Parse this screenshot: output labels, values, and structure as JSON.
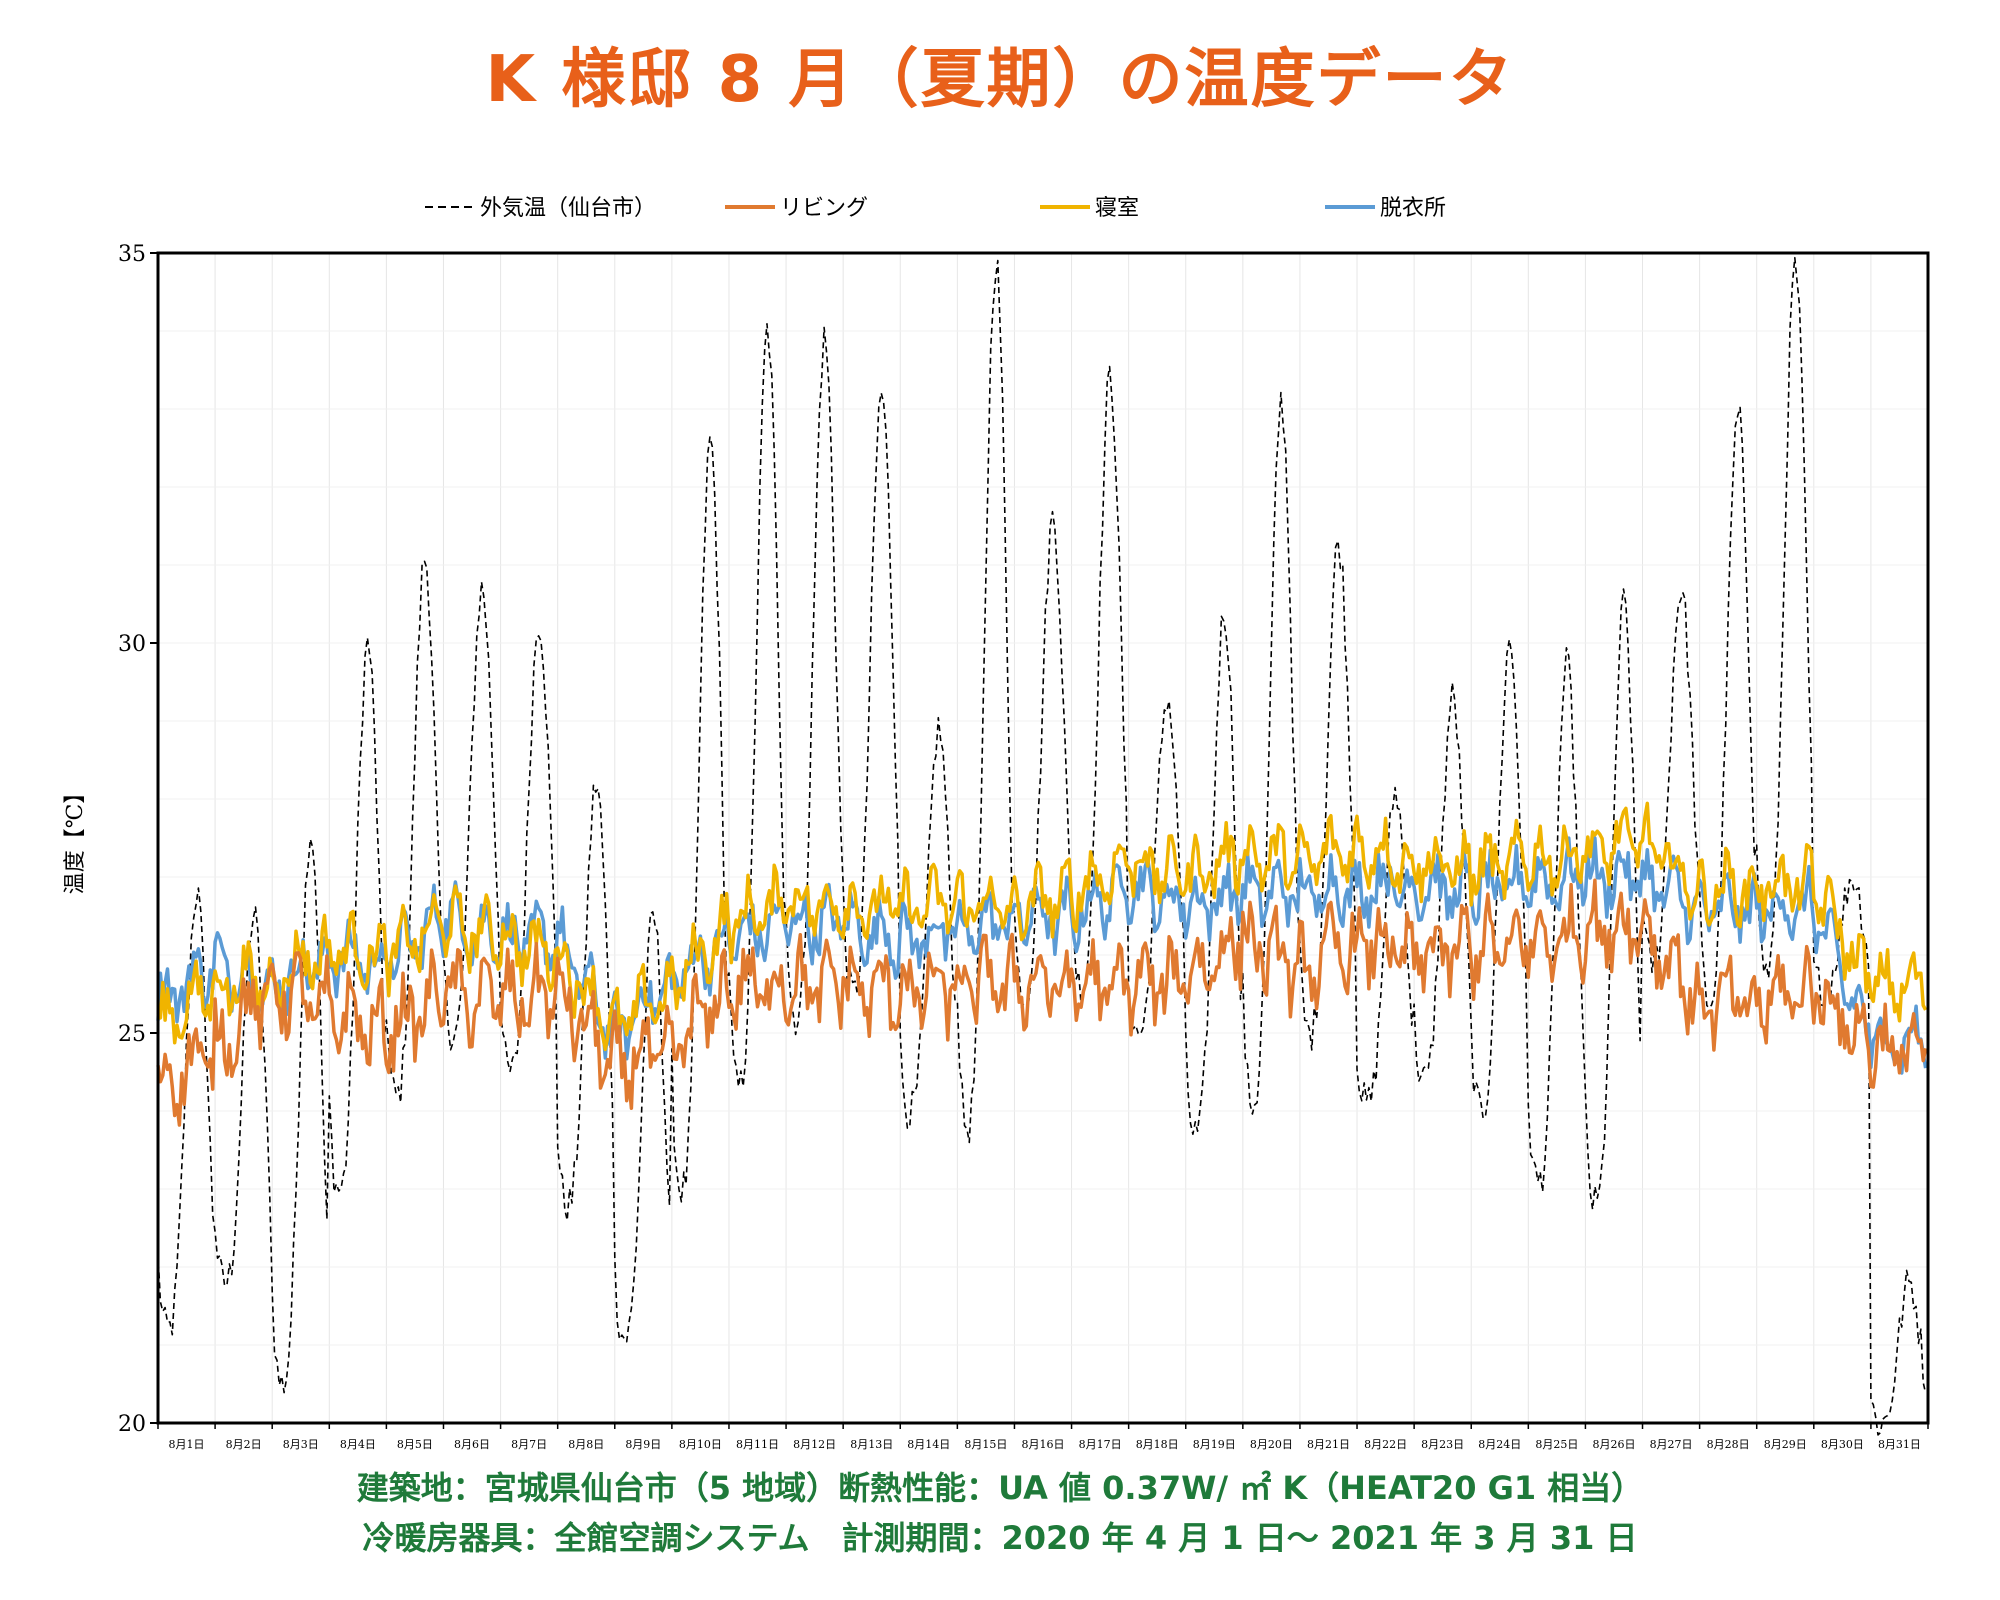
{
  "title": "K 様邸 8 月（夏期）の温度データ",
  "colors": {
    "title": "#e8601a",
    "footer": "#1f7a3a",
    "outdoor": "#000000",
    "living": "#e07a30",
    "bedroom": "#f0b400",
    "dressing": "#5b9bd5"
  },
  "footer": {
    "line1": "建築地：宮城県仙台市（5 地域）断熱性能：UA 値 0.37W/ ㎡ K（HEAT20 G1 相当）",
    "line2": "冷暖房器具：全館空調システム　計測期間：2020 年 4 月 1 日〜 2021 年 3 月 31 日"
  },
  "chart_data": {
    "type": "line",
    "ylabel": "温度【℃】",
    "ylim": [
      20,
      35
    ],
    "yticks": [
      "20",
      "25",
      "30",
      "35"
    ],
    "xlabels": [
      "8月1日",
      "8月2日",
      "8月3日",
      "8月4日",
      "8月5日",
      "8月6日",
      "8月7日",
      "8月8日",
      "8月9日",
      "8月10日",
      "8月11日",
      "8月12日",
      "8月13日",
      "8月14日",
      "8月15日",
      "8月16日",
      "8月17日",
      "8月18日",
      "8月19日",
      "8月20日",
      "8月21日",
      "8月22日",
      "8月23日",
      "8月24日",
      "8月25日",
      "8月26日",
      "8月27日",
      "8月28日",
      "8月29日",
      "8月30日",
      "8月31日"
    ],
    "legend_position": "top",
    "grid": true,
    "series": [
      {
        "name": "外気温（仙台市）",
        "style": "dashed",
        "daily_min": [
          21.2,
          21.8,
          20.5,
          23.0,
          24.2,
          25.0,
          24.5,
          22.8,
          21.1,
          23.0,
          24.3,
          25.2,
          25.5,
          24.0,
          23.8,
          25.5,
          25.6,
          25.0,
          23.7,
          24.1,
          25.0,
          24.1,
          24.4,
          24.0,
          23.1,
          22.8,
          25.9,
          25.4,
          25.8,
          25.6,
          20.0
        ],
        "daily_max": [
          26.8,
          26.5,
          27.6,
          30.0,
          31.1,
          30.7,
          30.3,
          28.2,
          26.5,
          32.6,
          34.0,
          33.9,
          33.2,
          28.9,
          34.9,
          31.6,
          33.4,
          29.3,
          30.4,
          33.1,
          31.3,
          28.1,
          29.3,
          30.0,
          29.7,
          30.5,
          30.7,
          32.9,
          34.8,
          27.0,
          21.8
        ]
      },
      {
        "name": "リビング",
        "style": "solid",
        "daily": [
          24.3,
          24.8,
          25.6,
          25.3,
          25.0,
          25.5,
          25.4,
          25.5,
          24.6,
          24.8,
          25.6,
          25.6,
          25.6,
          25.5,
          25.6,
          25.7,
          25.6,
          25.6,
          25.7,
          26.2,
          25.8,
          26.2,
          26.0,
          26.1,
          26.1,
          26.3,
          26.4,
          25.4,
          25.4,
          25.6,
          24.8
        ]
      },
      {
        "name": "寝室",
        "style": "solid",
        "daily": [
          25.1,
          25.6,
          25.7,
          26.1,
          26.0,
          26.4,
          26.2,
          26.0,
          25.1,
          25.6,
          26.4,
          26.7,
          26.6,
          26.6,
          26.7,
          26.6,
          26.8,
          27.2,
          27.0,
          27.3,
          27.2,
          27.4,
          27.2,
          27.1,
          27.2,
          27.3,
          27.5,
          26.8,
          26.9,
          26.9,
          25.6
        ]
      },
      {
        "name": "脱衣所",
        "style": "solid",
        "daily": [
          25.4,
          25.9,
          25.6,
          26.0,
          25.9,
          26.5,
          26.2,
          26.2,
          25.0,
          25.7,
          26.2,
          26.4,
          26.4,
          26.2,
          26.3,
          26.5,
          26.5,
          26.9,
          26.6,
          26.8,
          26.8,
          26.9,
          26.9,
          26.8,
          26.9,
          27.0,
          27.0,
          26.6,
          26.6,
          26.6,
          24.9
        ]
      }
    ]
  }
}
